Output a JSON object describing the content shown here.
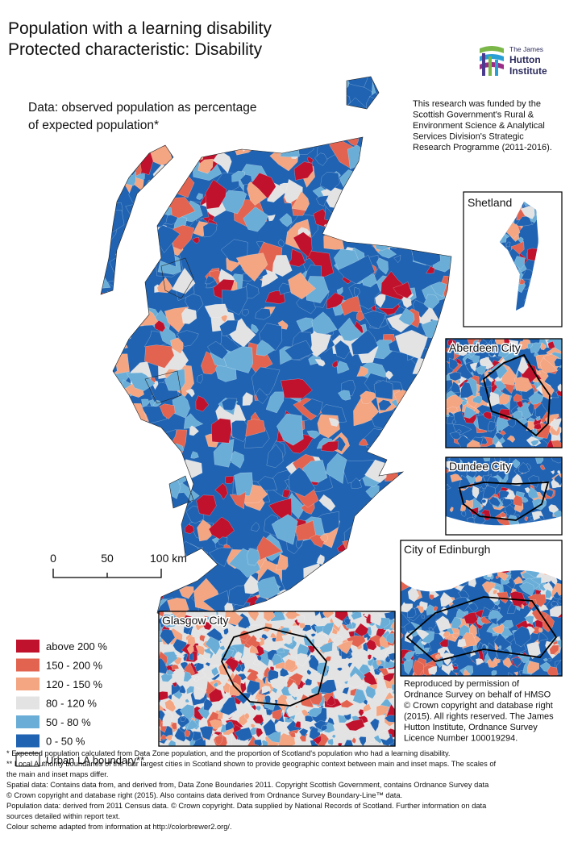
{
  "title": [
    "Population with a learning disability",
    "Protected characteristic: Disability"
  ],
  "subtitle": [
    "Data: observed population as percentage",
    "of expected population*"
  ],
  "logo": [
    "The James",
    "Hutton",
    "Institute"
  ],
  "funding": [
    "This research was funded by the",
    "Scottish Government's Rural &",
    "Environment Science & Analytical",
    "Services Division's Strategic",
    "Research Programme (2011-2016)."
  ],
  "insets": [
    "Shetland",
    "Aberdeen City",
    "Dundee City",
    "City of Edinburgh",
    "Glasgow City"
  ],
  "scale_bar": [
    "0",
    "50",
    "100 km"
  ],
  "legend": [
    {
      "label": "above 200 %",
      "color": "#c0122c"
    },
    {
      "label": "150 - 200 %",
      "color": "#e26450"
    },
    {
      "label": "120 - 150 %",
      "color": "#f4a582"
    },
    {
      "label": "80 - 120 %",
      "color": "#e3e3e3"
    },
    {
      "label": "50 - 80 %",
      "color": "#6aaed8"
    },
    {
      "label": "0 - 50 %",
      "color": "#1f63b2"
    },
    {
      "label": "Urban LA boundary**",
      "color": "#ffffff"
    }
  ],
  "attribution": [
    "Reproduced by permission of",
    "Ordnance Survey on behalf of HMSO",
    "© Crown copyright and database right",
    "(2015). All rights reserved. The James",
    "Hutton Institute, Ordnance Survey",
    "Licence Number 100019294."
  ],
  "footnotes": [
    "* Expected population calculated from Data Zone population, and the proportion of Scotland's population who had a learning disability.",
    "** Local Authority boundaries of the four largest cities in Scotland shown to provide geographic context between main and inset maps. The scales of",
    "the main and inset maps differ.",
    "Spatial data: Contains data from, and derived from, Data Zone Boundaries 2011. Copyright Scottish Government, contains Ordnance Survey data",
    "© Crown copyright and database right (2015). Also contains data derived from Ordnance Survey Boundary-Line™ data.",
    "Population data: derived from 2011 Census data. © Crown copyright. Data supplied by National Records of Scotland. Further information on data",
    "sources detailed within report text.",
    "Colour scheme adapted from information at http://colorbrewer2.org/."
  ]
}
